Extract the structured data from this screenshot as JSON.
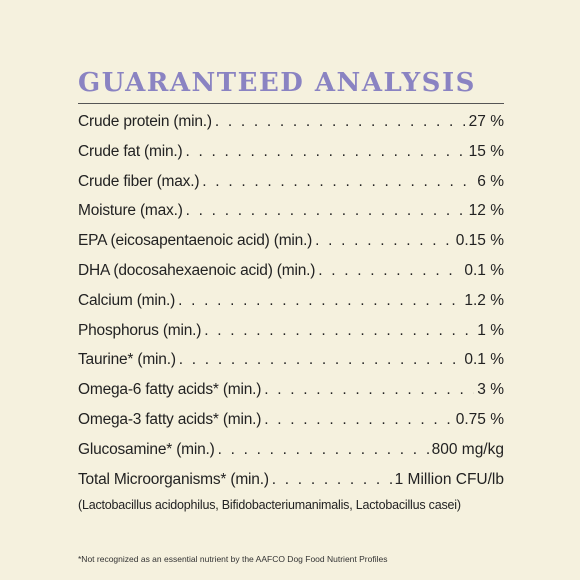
{
  "title": "GUARANTEED ANALYSIS",
  "rows": [
    {
      "label": "Crude protein (min.)",
      "dots": ". . . . . . . . . . . . . . . . . . . . . . . . . . . . . . . . . . . . . . . . . . . . . . .",
      "value": "27 %"
    },
    {
      "label": "Crude fat (min.)",
      "dots": ". . . . . . . . . . . . . . . . . . . . . . . . . . . . . . . . . . . . . . . . . . . . . . . .",
      "value": "15 %"
    },
    {
      "label": "Crude fiber (max.)",
      "dots": ". . . . . . . . . . . . . . . . . . . . . . . . . . . . . . . . . . . . . . . . . . . . . . . .",
      "value": "6 %"
    },
    {
      "label": "Moisture (max.)",
      "dots": ". . . . . . . . . . . . . . . . . . . . . . . . . . . . . . . . . . . . . . . . . . . . . . . .",
      "value": "12 %"
    },
    {
      "label": "EPA (eicosapentaenoic acid) (min.)",
      "dots": ". . . . . . . . . . . . . . . . . . . . . . . . . . . . . . . .",
      "value": "0.15 %"
    },
    {
      "label": "DHA (docosahexaenoic acid) (min.)",
      "dots": ". . . . . . . . . . . . . . . . . . . . . . . . . . . . . . . .",
      "value": "0.1 %"
    },
    {
      "label": "Calcium (min.)",
      "dots": ". . . . . . . . . . . . . . . . . . . . . . . . . . . . . . . . . . . . . . . . . . . . . . . .",
      "value": "1.2 %"
    },
    {
      "label": "Phosphorus (min.)",
      "dots": ". . . . . . . . . . . . . . . . . . . . . . . . . . . . . . . . . . . . . . . . . . . . . . . .",
      "value": "1 %"
    },
    {
      "label": "Taurine* (min.)",
      "dots": ". . . . . . . . . . . . . . . . . . . . . . . . . . . . . . . . . . . . . . . . . . . . . . . .",
      "value": "0.1 %"
    },
    {
      "label": "Omega-6 fatty acids* (min.)",
      "dots": ". . . . . . . . . . . . . . . . . . . . . . . . . . . . . . . . . . . . . . . . . . . . . . . .",
      "value": "3 %"
    },
    {
      "label": "Omega-3 fatty acids* (min.)",
      "dots": ". . . . . . . . . . . . . . . . . . . . . . . . . . . . . . . . . . . . . . . . . . . . . . . .",
      "value": "0.75 %"
    },
    {
      "label": "Glucosamine* (min.)",
      "dots": ". . . . . . . . . . . . . . . . . . . . . . . . . . . . . . . . . . . . . . . . . . . . . . . .",
      "value": "800 mg/kg"
    },
    {
      "label": "Total Microorganisms* (min.)",
      "dots": ". . . . . . . . . . . . . . . . . . . . . . . . . . . . . . . . . . . . . . . . . . . . . . . .",
      "value": "1 Million CFU/lb"
    }
  ],
  "strains": "(Lactobacillus acidophilus, Bifidobacteriumanimalis, Lactobacillus casei)",
  "footnote": "*Not recognized as an essential nutrient by the AAFCO Dog Food Nutrient Profiles",
  "colors": {
    "background": "#f5f1de",
    "title": "#8a83c2",
    "text": "#222222"
  }
}
